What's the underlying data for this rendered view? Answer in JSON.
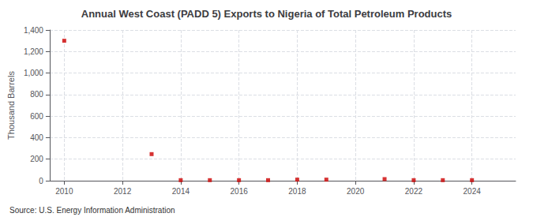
{
  "chart_data": {
    "type": "scatter",
    "title": "Annual West Coast (PADD 5) Exports to Nigeria of Total Petroleum Products",
    "ylabel": "Thousand Barrels",
    "annotations": [
      "Source: U.S. Energy Information Administration"
    ],
    "x": [
      2010,
      2013,
      2014,
      2015,
      2016,
      2017,
      2018,
      2019,
      2021,
      2022,
      2023,
      2024
    ],
    "values": [
      1300,
      247,
      5,
      5,
      5,
      5,
      10,
      10,
      15,
      5,
      5,
      5
    ],
    "color": "#cc0000",
    "marker": "square",
    "xlim": [
      2009.5,
      2025.5
    ],
    "xticks": [
      2010,
      2012,
      2014,
      2016,
      2018,
      2020,
      2022,
      2024
    ],
    "ylim": [
      0,
      1400
    ],
    "yticks": [
      0,
      200,
      400,
      600,
      800,
      {
        "value": 1000,
        "label": "1,000"
      },
      {
        "value": 1200,
        "label": "1,200"
      },
      {
        "value": 1400,
        "label": "1,400"
      }
    ],
    "grid": true
  }
}
